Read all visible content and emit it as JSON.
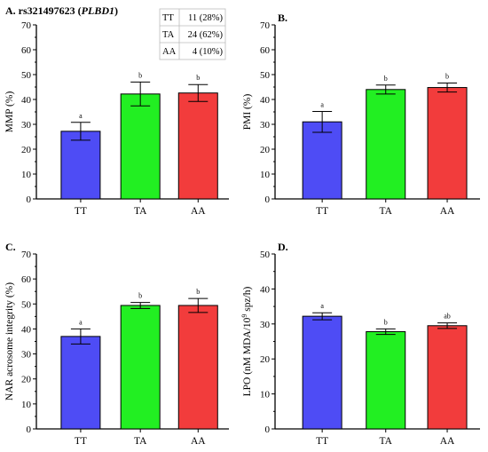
{
  "chart_data": [
    {
      "type": "bar",
      "panel_label": "A. rs321497623",
      "gene": "PLBD1",
      "categories": [
        "TT",
        "TA",
        "AA"
      ],
      "values": [
        27.2,
        42.2,
        42.6
      ],
      "errors": [
        3.6,
        4.8,
        3.4
      ],
      "significance_letters": [
        "a",
        "b",
        "b"
      ],
      "ylabel": "MMP (%)",
      "ylim": [
        0,
        70
      ],
      "yticks": [
        0,
        10,
        20,
        30,
        40,
        50,
        60,
        70
      ],
      "colors": [
        "#4e4cf5",
        "#22ef22",
        "#f23c3c"
      ],
      "genotype_table": [
        {
          "genotype": "TT",
          "count": "11 (28%)"
        },
        {
          "genotype": "TA",
          "count": "24 (62%)"
        },
        {
          "genotype": "AA",
          "count": "4 (10%)"
        }
      ]
    },
    {
      "type": "bar",
      "panel_label": "B.",
      "categories": [
        "TT",
        "TA",
        "AA"
      ],
      "values": [
        31.0,
        44.0,
        44.8
      ],
      "errors": [
        4.2,
        1.8,
        1.8
      ],
      "significance_letters": [
        "a",
        "b",
        "b"
      ],
      "ylabel": "PMI (%)",
      "ylim": [
        0,
        70
      ],
      "yticks": [
        0,
        10,
        20,
        30,
        40,
        50,
        60,
        70
      ],
      "colors": [
        "#4e4cf5",
        "#22ef22",
        "#f23c3c"
      ]
    },
    {
      "type": "bar",
      "panel_label": "C.",
      "categories": [
        "TT",
        "TA",
        "AA"
      ],
      "values": [
        37.0,
        49.4,
        49.4
      ],
      "errors": [
        3.0,
        1.2,
        2.8
      ],
      "significance_letters": [
        "a",
        "b",
        "b"
      ],
      "ylabel": "NAR acrosome integrity (%)",
      "ylim": [
        0,
        70
      ],
      "yticks": [
        0,
        10,
        20,
        30,
        40,
        50,
        60,
        70
      ],
      "colors": [
        "#4e4cf5",
        "#22ef22",
        "#f23c3c"
      ]
    },
    {
      "type": "bar",
      "panel_label": "D.",
      "categories": [
        "TT",
        "TA",
        "AA"
      ],
      "values": [
        32.2,
        27.8,
        29.5
      ],
      "errors": [
        1.0,
        0.8,
        0.8
      ],
      "significance_letters": [
        "a",
        "b",
        "ab"
      ],
      "ylabel": "LPO (nM MDA/10",
      "ylabel_sup": "9",
      "ylabel_tail": " spz/h)",
      "ylim": [
        0,
        50
      ],
      "yticks": [
        0,
        10,
        20,
        30,
        40,
        50
      ],
      "colors": [
        "#4e4cf5",
        "#22ef22",
        "#f23c3c"
      ]
    }
  ]
}
